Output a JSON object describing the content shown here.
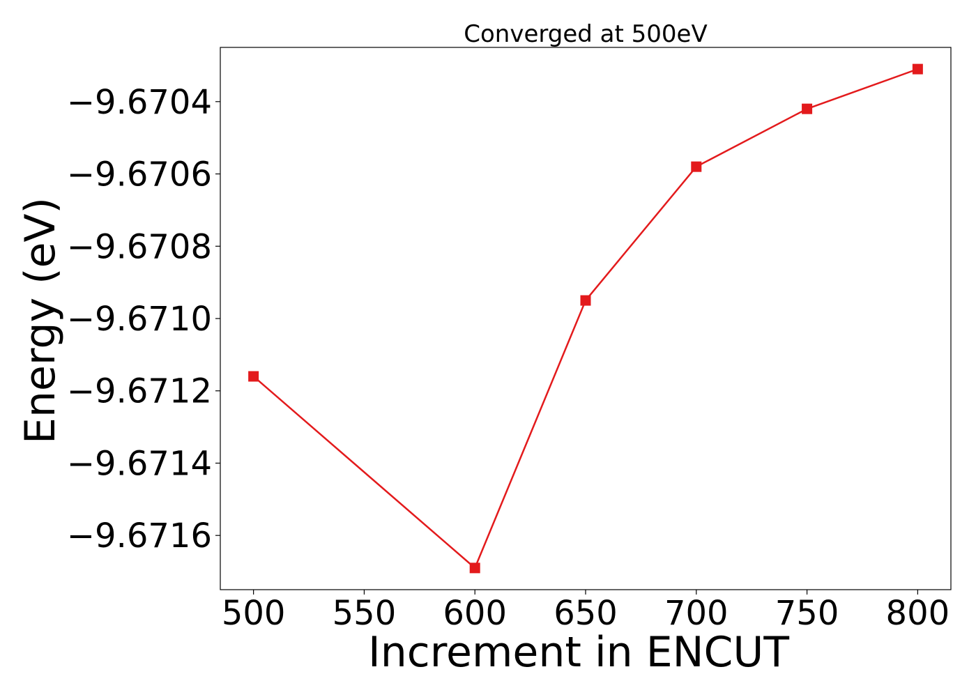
{
  "chart_data": {
    "type": "line",
    "title": "Converged at 500eV",
    "xlabel": "Increment in ENCUT",
    "ylabel": "Energy (eV)",
    "x": [
      500,
      600,
      650,
      700,
      750,
      800
    ],
    "series": [
      {
        "values": [
          -9.67116,
          -9.67169,
          -9.67095,
          -9.67058,
          -9.67042,
          -9.67031
        ],
        "color": "#e31a1c",
        "marker": "square"
      }
    ],
    "xlim": [
      485,
      815
    ],
    "ylim": [
      -9.67175,
      -9.67025
    ],
    "xticks": [
      500,
      550,
      600,
      650,
      700,
      750,
      800
    ],
    "xtick_labels": [
      "500",
      "550",
      "600",
      "650",
      "700",
      "750",
      "800"
    ],
    "yticks": [
      -9.6716,
      -9.6714,
      -9.6712,
      -9.671,
      -9.6708,
      -9.6706,
      -9.6704
    ],
    "ytick_labels": [
      "−9.6716",
      "−9.6714",
      "−9.6712",
      "−9.6710",
      "−9.6708",
      "−9.6706",
      "−9.6704"
    ],
    "grid": false,
    "legend": "none"
  }
}
